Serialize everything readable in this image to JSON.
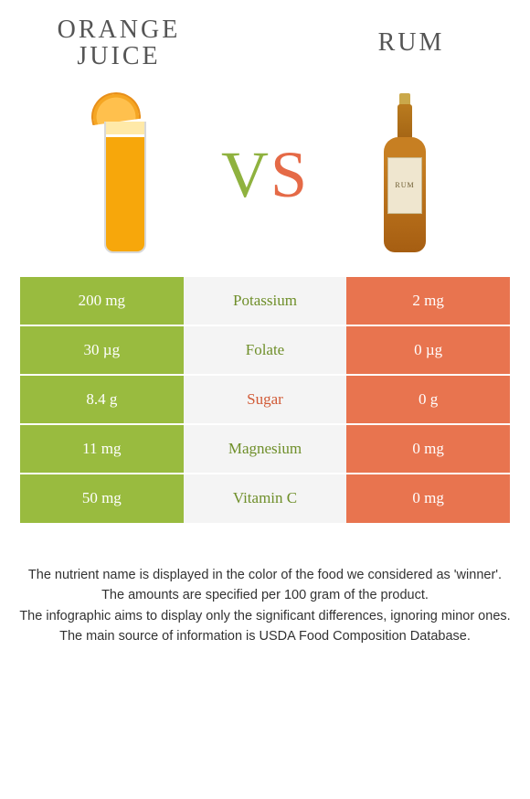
{
  "header": {
    "left_title_line1": "Orange",
    "left_title_line2": "juice",
    "right_title": "Rum",
    "vs_v": "V",
    "vs_s": "S",
    "rum_label": "RUM"
  },
  "colors": {
    "left_bar": "#99bb3f",
    "right_bar": "#e8744f",
    "mid_bg": "#f4f4f4",
    "winner_left_text": "#6f8f2a",
    "winner_right_text": "#d15a36"
  },
  "rows": [
    {
      "nutrient": "Potassium",
      "left": "200 mg",
      "right": "2 mg",
      "winner": "left"
    },
    {
      "nutrient": "Folate",
      "left": "30 µg",
      "right": "0 µg",
      "winner": "left"
    },
    {
      "nutrient": "Sugar",
      "left": "8.4 g",
      "right": "0 g",
      "winner": "right"
    },
    {
      "nutrient": "Magnesium",
      "left": "11 mg",
      "right": "0 mg",
      "winner": "left"
    },
    {
      "nutrient": "Vitamin C",
      "left": "50 mg",
      "right": "0 mg",
      "winner": "left"
    }
  ],
  "notes": {
    "l1": "The nutrient name is displayed in the color of the food we considered as 'winner'.",
    "l2": "The amounts are specified per 100 gram of the product.",
    "l3": "The infographic aims to display only the significant differences, ignoring minor ones.",
    "l4": "The main source of information is USDA Food Composition Database."
  }
}
